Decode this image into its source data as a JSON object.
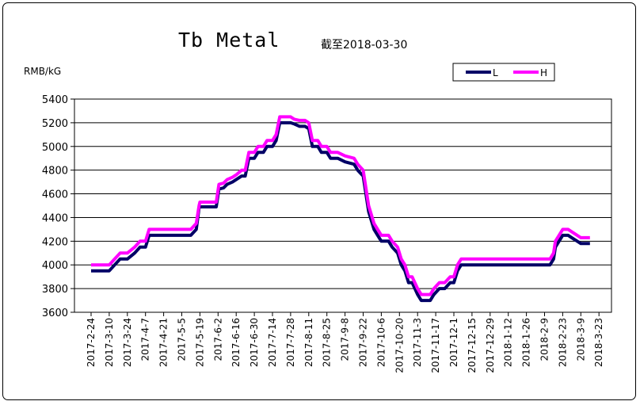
{
  "chart_data": {
    "type": "line",
    "title": "Tb Metal",
    "subtitle": "截至2018-03-30",
    "ylabel": "RMB/kG",
    "ylim": [
      3600,
      5400
    ],
    "yticks": [
      3600,
      3800,
      4000,
      4200,
      4400,
      4600,
      4800,
      5000,
      5200,
      5400
    ],
    "xlabels": [
      "2017-2-24",
      "2017-3-10",
      "2017-3-24",
      "2017-4-7",
      "2017-4-21",
      "2017-5-5",
      "2017-5-19",
      "2017-6-2",
      "2017-6-16",
      "2017-6-30",
      "2017-7-14",
      "2017-7-28",
      "2017-8-11",
      "2017-8-25",
      "2017-9-8",
      "2017-9-22",
      "2017-10-6",
      "2017-10-20",
      "2017-11-3",
      "2017-11-17",
      "2017-12-1",
      "2017-12-15",
      "2017-12-29",
      "2018-1-12",
      "2018-1-26",
      "2018-2-9",
      "2018-2-23",
      "2018-3-9",
      "2018-3-23"
    ],
    "grid": true,
    "legend_position": "top-right",
    "series": [
      {
        "name": "L",
        "color": "#000066",
        "values": [
          [
            0,
            3950
          ],
          [
            0.5,
            3950
          ],
          [
            1,
            3950
          ],
          [
            1.3,
            4000
          ],
          [
            1.6,
            4050
          ],
          [
            2,
            4050
          ],
          [
            2.4,
            4100
          ],
          [
            2.7,
            4150
          ],
          [
            3,
            4150
          ],
          [
            3.2,
            4250
          ],
          [
            4,
            4250
          ],
          [
            5,
            4250
          ],
          [
            5.5,
            4250
          ],
          [
            5.8,
            4300
          ],
          [
            5.95,
            4480
          ],
          [
            6,
            4490
          ],
          [
            6.5,
            4490
          ],
          [
            6.9,
            4490
          ],
          [
            7.05,
            4640
          ],
          [
            7.3,
            4650
          ],
          [
            7.5,
            4680
          ],
          [
            7.8,
            4700
          ],
          [
            8,
            4720
          ],
          [
            8.3,
            4750
          ],
          [
            8.5,
            4750
          ],
          [
            8.7,
            4900
          ],
          [
            9,
            4900
          ],
          [
            9.2,
            4950
          ],
          [
            9.5,
            4950
          ],
          [
            9.7,
            5000
          ],
          [
            10,
            5000
          ],
          [
            10.2,
            5050
          ],
          [
            10.4,
            5200
          ],
          [
            10.7,
            5200
          ],
          [
            11,
            5200
          ],
          [
            11.2,
            5190
          ],
          [
            11.5,
            5170
          ],
          [
            11.8,
            5170
          ],
          [
            12,
            5150
          ],
          [
            12.2,
            5000
          ],
          [
            12.5,
            5000
          ],
          [
            12.7,
            4950
          ],
          [
            13,
            4950
          ],
          [
            13.2,
            4900
          ],
          [
            13.6,
            4900
          ],
          [
            14,
            4870
          ],
          [
            14.5,
            4850
          ],
          [
            14.7,
            4800
          ],
          [
            15,
            4750
          ],
          [
            15.3,
            4450
          ],
          [
            15.6,
            4300
          ],
          [
            15.8,
            4250
          ],
          [
            16,
            4200
          ],
          [
            16.4,
            4200
          ],
          [
            16.6,
            4150
          ],
          [
            16.9,
            4100
          ],
          [
            17.1,
            4000
          ],
          [
            17.3,
            3950
          ],
          [
            17.5,
            3850
          ],
          [
            17.7,
            3850
          ],
          [
            18,
            3750
          ],
          [
            18.2,
            3700
          ],
          [
            18.5,
            3700
          ],
          [
            18.7,
            3700
          ],
          [
            18.9,
            3750
          ],
          [
            19.2,
            3800
          ],
          [
            19.5,
            3800
          ],
          [
            19.8,
            3850
          ],
          [
            20,
            3850
          ],
          [
            20.2,
            3950
          ],
          [
            20.4,
            4000
          ],
          [
            21,
            4000
          ],
          [
            22,
            4000
          ],
          [
            23,
            4000
          ],
          [
            24,
            4000
          ],
          [
            25,
            4000
          ],
          [
            25.3,
            4000
          ],
          [
            25.5,
            4050
          ],
          [
            25.6,
            4150
          ],
          [
            25.8,
            4200
          ],
          [
            26,
            4250
          ],
          [
            26.3,
            4250
          ],
          [
            26.5,
            4230
          ],
          [
            26.8,
            4200
          ],
          [
            27,
            4180
          ],
          [
            27.5,
            4180
          ]
        ]
      },
      {
        "name": "H",
        "color": "#FF00FF",
        "values": [
          [
            0,
            4000
          ],
          [
            0.5,
            4000
          ],
          [
            1,
            4000
          ],
          [
            1.3,
            4050
          ],
          [
            1.6,
            4100
          ],
          [
            2,
            4100
          ],
          [
            2.4,
            4150
          ],
          [
            2.7,
            4200
          ],
          [
            3,
            4200
          ],
          [
            3.2,
            4300
          ],
          [
            4,
            4300
          ],
          [
            5,
            4300
          ],
          [
            5.5,
            4300
          ],
          [
            5.8,
            4350
          ],
          [
            5.95,
            4500
          ],
          [
            6,
            4530
          ],
          [
            6.5,
            4530
          ],
          [
            6.9,
            4530
          ],
          [
            7.05,
            4680
          ],
          [
            7.3,
            4690
          ],
          [
            7.5,
            4720
          ],
          [
            7.8,
            4740
          ],
          [
            8,
            4760
          ],
          [
            8.3,
            4800
          ],
          [
            8.5,
            4800
          ],
          [
            8.7,
            4950
          ],
          [
            9,
            4950
          ],
          [
            9.2,
            5000
          ],
          [
            9.5,
            5000
          ],
          [
            9.7,
            5050
          ],
          [
            10,
            5050
          ],
          [
            10.2,
            5100
          ],
          [
            10.4,
            5250
          ],
          [
            10.7,
            5250
          ],
          [
            11,
            5250
          ],
          [
            11.2,
            5230
          ],
          [
            11.5,
            5220
          ],
          [
            11.8,
            5220
          ],
          [
            12,
            5200
          ],
          [
            12.2,
            5050
          ],
          [
            12.5,
            5050
          ],
          [
            12.7,
            5000
          ],
          [
            13,
            5000
          ],
          [
            13.2,
            4950
          ],
          [
            13.6,
            4950
          ],
          [
            14,
            4920
          ],
          [
            14.5,
            4900
          ],
          [
            14.7,
            4850
          ],
          [
            15,
            4800
          ],
          [
            15.3,
            4500
          ],
          [
            15.6,
            4350
          ],
          [
            15.8,
            4300
          ],
          [
            16,
            4250
          ],
          [
            16.4,
            4250
          ],
          [
            16.6,
            4200
          ],
          [
            16.9,
            4150
          ],
          [
            17.1,
            4050
          ],
          [
            17.3,
            4000
          ],
          [
            17.5,
            3900
          ],
          [
            17.7,
            3900
          ],
          [
            18,
            3800
          ],
          [
            18.2,
            3750
          ],
          [
            18.5,
            3750
          ],
          [
            18.7,
            3750
          ],
          [
            18.9,
            3800
          ],
          [
            19.2,
            3850
          ],
          [
            19.5,
            3850
          ],
          [
            19.8,
            3900
          ],
          [
            20,
            3900
          ],
          [
            20.2,
            4000
          ],
          [
            20.4,
            4050
          ],
          [
            21,
            4050
          ],
          [
            22,
            4050
          ],
          [
            23,
            4050
          ],
          [
            24,
            4050
          ],
          [
            25,
            4050
          ],
          [
            25.3,
            4050
          ],
          [
            25.5,
            4100
          ],
          [
            25.6,
            4200
          ],
          [
            25.8,
            4250
          ],
          [
            26,
            4300
          ],
          [
            26.3,
            4300
          ],
          [
            26.5,
            4280
          ],
          [
            26.8,
            4250
          ],
          [
            27,
            4230
          ],
          [
            27.5,
            4230
          ]
        ]
      }
    ]
  }
}
